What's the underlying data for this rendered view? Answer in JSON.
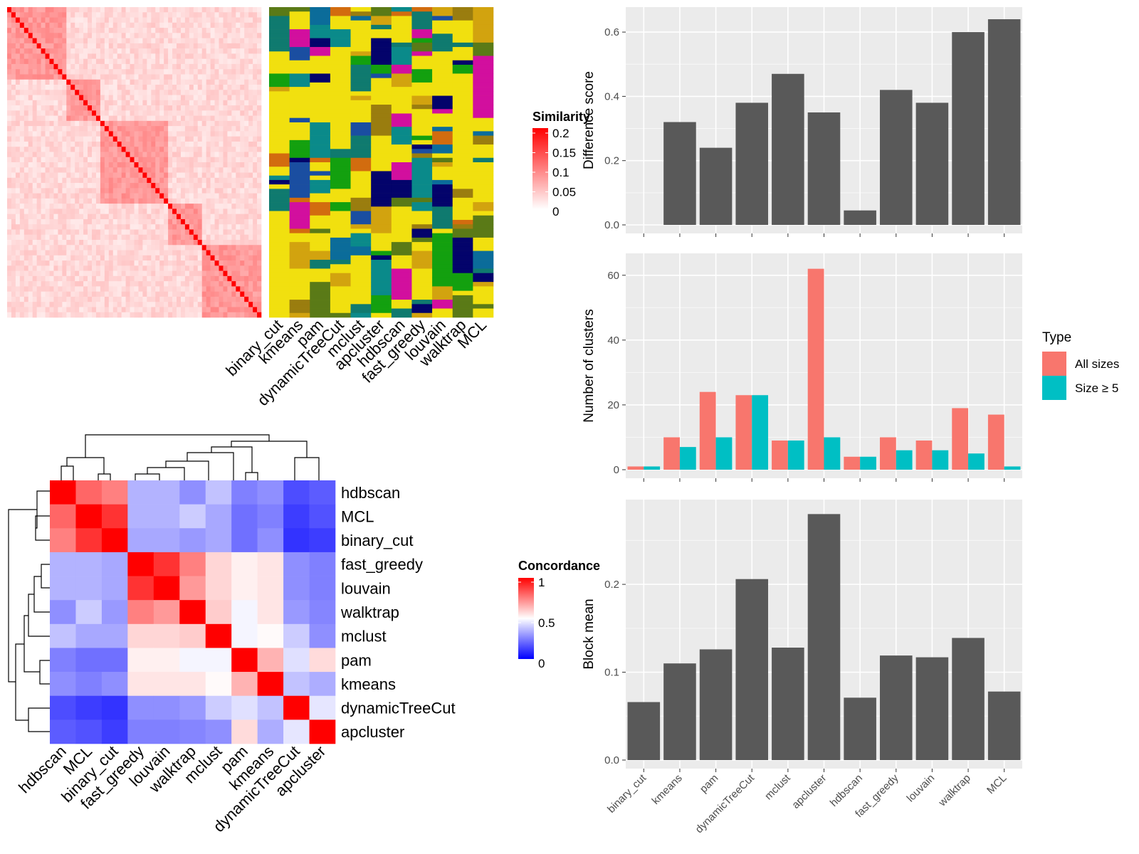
{
  "methods": [
    "binary_cut",
    "kmeans",
    "pam",
    "dynamicTreeCut",
    "mclust",
    "apcluster",
    "hdbscan",
    "fast_greedy",
    "louvain",
    "walktrap",
    "MCL"
  ],
  "similarity_legend": {
    "title": "Similarity",
    "ticks": [
      "0.2",
      "0.15",
      "0.1",
      "0.05",
      "0"
    ],
    "colors": [
      "#ffffff",
      "#ff0000"
    ]
  },
  "concordance_legend": {
    "title": "Concordance",
    "ticks": [
      "1",
      "0.5",
      "0"
    ],
    "colors": [
      "#0000ff",
      "#ffffff",
      "#ff0000"
    ]
  },
  "chart_data": [
    {
      "type": "bar",
      "id": "difference_score",
      "categories": [
        "binary_cut",
        "kmeans",
        "pam",
        "dynamicTreeCut",
        "mclust",
        "apcluster",
        "hdbscan",
        "fast_greedy",
        "louvain",
        "walktrap",
        "MCL"
      ],
      "values": [
        0.0,
        0.32,
        0.24,
        0.38,
        0.47,
        0.35,
        0.045,
        0.42,
        0.38,
        0.6,
        0.64
      ],
      "ylabel": "Difference score",
      "ylim": [
        0,
        0.66
      ],
      "yticks": [
        0.0,
        0.2,
        0.4,
        0.6
      ],
      "ytick_labels": [
        "0.0",
        "0.2",
        "0.4",
        "0.6"
      ],
      "color": "#595959"
    },
    {
      "type": "bar",
      "id": "number_of_clusters",
      "categories": [
        "binary_cut",
        "kmeans",
        "pam",
        "dynamicTreeCut",
        "mclust",
        "apcluster",
        "hdbscan",
        "fast_greedy",
        "louvain",
        "walktrap",
        "MCL"
      ],
      "series": [
        {
          "name": "All sizes",
          "color": "#F8766D",
          "values": [
            1,
            10,
            24,
            23,
            9,
            62,
            4,
            10,
            9,
            19,
            17
          ]
        },
        {
          "name": "Size ≥ 5",
          "color": "#00BFC4",
          "values": [
            1,
            7,
            10,
            23,
            9,
            10,
            4,
            6,
            6,
            5,
            1
          ]
        }
      ],
      "ylabel": "Number of clusters",
      "ylim": [
        0,
        65
      ],
      "yticks": [
        0,
        20,
        40,
        60
      ],
      "ytick_labels": [
        "0",
        "20",
        "40",
        "60"
      ],
      "legend": {
        "title": "Type",
        "placement": "right"
      }
    },
    {
      "type": "bar",
      "id": "block_mean",
      "categories": [
        "binary_cut",
        "kmeans",
        "pam",
        "dynamicTreeCut",
        "mclust",
        "apcluster",
        "hdbscan",
        "fast_greedy",
        "louvain",
        "walktrap",
        "MCL"
      ],
      "values": [
        0.066,
        0.11,
        0.126,
        0.206,
        0.128,
        0.28,
        0.071,
        0.119,
        0.117,
        0.139,
        0.078
      ],
      "ylabel": "Block mean",
      "ylim": [
        0,
        0.29
      ],
      "yticks": [
        0.0,
        0.1,
        0.2
      ],
      "ytick_labels": [
        "0.0",
        "0.1",
        "0.2"
      ],
      "color": "#595959"
    },
    {
      "type": "heatmap",
      "id": "concordance",
      "rows": [
        "hdbscan",
        "MCL",
        "binary_cut",
        "fast_greedy",
        "louvain",
        "walktrap",
        "mclust",
        "pam",
        "kmeans",
        "dynamicTreeCut",
        "apcluster"
      ],
      "columns": [
        "hdbscan",
        "MCL",
        "binary_cut",
        "fast_greedy",
        "louvain",
        "walktrap",
        "mclust",
        "pam",
        "kmeans",
        "dynamicTreeCut",
        "apcluster"
      ],
      "values": [
        [
          1.0,
          0.8,
          0.75,
          0.35,
          0.35,
          0.28,
          0.38,
          0.25,
          0.28,
          0.15,
          0.18
        ],
        [
          0.8,
          1.0,
          0.9,
          0.35,
          0.35,
          0.4,
          0.33,
          0.22,
          0.25,
          0.12,
          0.16
        ],
        [
          0.75,
          0.9,
          1.0,
          0.33,
          0.33,
          0.3,
          0.33,
          0.22,
          0.28,
          0.1,
          0.12
        ],
        [
          0.35,
          0.35,
          0.33,
          1.0,
          0.9,
          0.75,
          0.58,
          0.53,
          0.55,
          0.28,
          0.25
        ],
        [
          0.35,
          0.35,
          0.33,
          0.9,
          1.0,
          0.7,
          0.58,
          0.53,
          0.55,
          0.28,
          0.25
        ],
        [
          0.28,
          0.4,
          0.3,
          0.75,
          0.7,
          1.0,
          0.6,
          0.48,
          0.55,
          0.3,
          0.26
        ],
        [
          0.38,
          0.33,
          0.33,
          0.58,
          0.58,
          0.6,
          1.0,
          0.48,
          0.51,
          0.4,
          0.28
        ],
        [
          0.25,
          0.22,
          0.22,
          0.53,
          0.53,
          0.48,
          0.48,
          1.0,
          0.65,
          0.44,
          0.57
        ],
        [
          0.28,
          0.25,
          0.28,
          0.55,
          0.55,
          0.55,
          0.51,
          0.65,
          1.0,
          0.38,
          0.34
        ],
        [
          0.15,
          0.12,
          0.1,
          0.28,
          0.28,
          0.3,
          0.4,
          0.44,
          0.38,
          1.0,
          0.45
        ],
        [
          0.18,
          0.16,
          0.12,
          0.25,
          0.25,
          0.26,
          0.28,
          0.57,
          0.34,
          0.45,
          1.0
        ]
      ],
      "colorscale": {
        "min": 0,
        "mid": 0.5,
        "max": 1
      }
    }
  ]
}
